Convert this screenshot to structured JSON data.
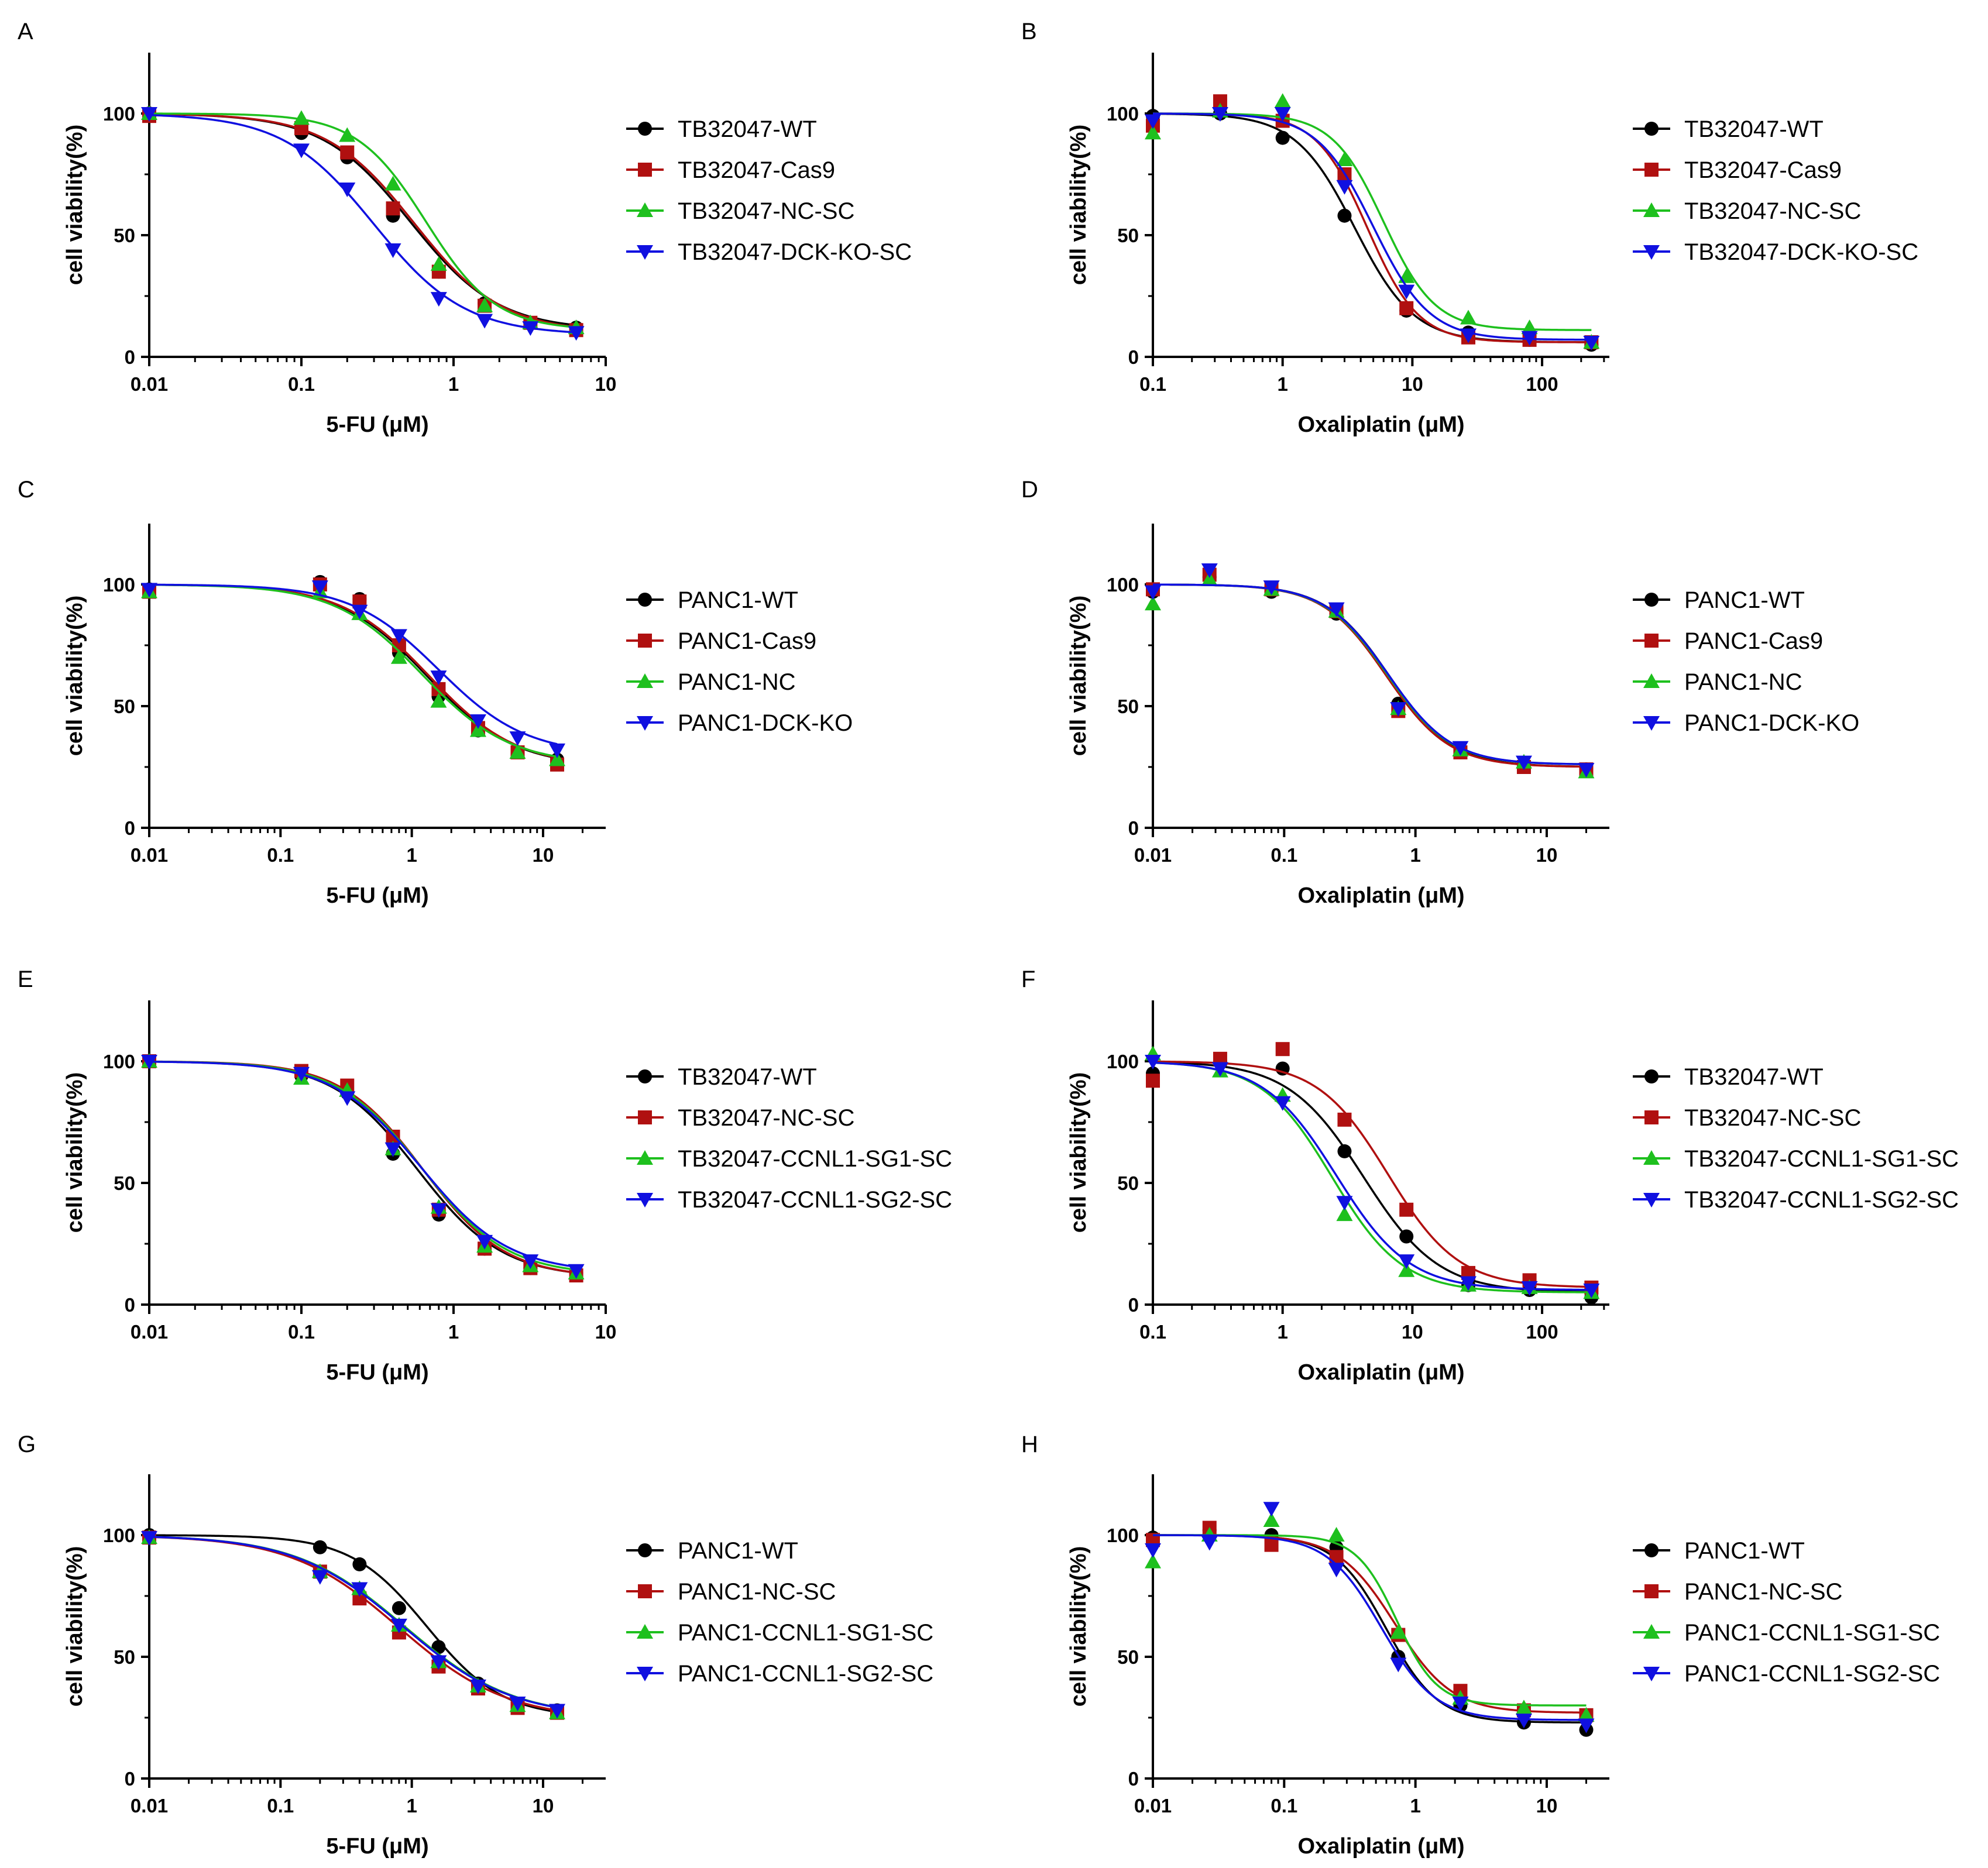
{
  "figure": {
    "panels": [
      "A",
      "B",
      "C",
      "D",
      "E",
      "F",
      "G",
      "H"
    ]
  },
  "chart_data": [
    {
      "panel": "A",
      "type": "line",
      "ylabel": "cell viability(%)",
      "xlabel": "5-FU (μM)",
      "xscale": "log",
      "xlim": [
        0.01,
        10
      ],
      "ylim": [
        0,
        125
      ],
      "xticks": [
        "0.01",
        "0.1",
        "1",
        "10"
      ],
      "yticks": [
        "0",
        "50",
        "100"
      ],
      "x": [
        0.01,
        0.1,
        0.2,
        0.4,
        0.8,
        1.6,
        3.2,
        6.4
      ],
      "series": [
        {
          "name": "TB32047-WT",
          "color": "#000000",
          "marker": "circle",
          "values": [
            100,
            92,
            82,
            58,
            35,
            22,
            14,
            12
          ],
          "fit": {
            "bottom": 11,
            "top": 100,
            "ic50": 0.52,
            "hill": 1.5
          }
        },
        {
          "name": "TB32047-Cas9",
          "color": "#b01010",
          "marker": "square",
          "values": [
            99,
            94,
            84,
            61,
            35,
            21,
            14,
            11
          ],
          "fit": {
            "bottom": 10,
            "top": 100,
            "ic50": 0.55,
            "hill": 1.5
          }
        },
        {
          "name": "TB32047-NC-SC",
          "color": "#1ec01e",
          "marker": "triangle-up",
          "values": [
            100,
            98,
            91,
            71,
            38,
            21,
            14,
            12
          ],
          "fit": {
            "bottom": 11,
            "top": 100,
            "ic50": 0.66,
            "hill": 1.9
          }
        },
        {
          "name": "TB32047-DCK-KO-SC",
          "color": "#1010e0",
          "marker": "triangle-down",
          "values": [
            100,
            85,
            69,
            44,
            24,
            15,
            12,
            10
          ],
          "fit": {
            "bottom": 9,
            "top": 100,
            "ic50": 0.3,
            "hill": 1.45
          }
        }
      ]
    },
    {
      "panel": "B",
      "type": "line",
      "ylabel": "cell viability(%)",
      "xlabel": "Oxaliplatin (μM)",
      "xscale": "log",
      "xlim": [
        0.1,
        330
      ],
      "ylim": [
        0,
        125
      ],
      "xticks": [
        "0.1",
        "1",
        "10",
        "100"
      ],
      "yticks": [
        "0",
        "50",
        "100"
      ],
      "x": [
        0.1,
        0.33,
        1,
        3,
        9,
        27,
        80,
        240
      ],
      "series": [
        {
          "name": "TB32047-WT",
          "color": "#000000",
          "marker": "circle",
          "values": [
            99,
            100,
            90,
            58,
            19,
            10,
            7,
            5
          ],
          "fit": {
            "bottom": 6,
            "top": 100,
            "ic50": 3.6,
            "hill": 1.9
          }
        },
        {
          "name": "TB32047-Cas9",
          "color": "#b01010",
          "marker": "square",
          "values": [
            95,
            105,
            97,
            75,
            20,
            8,
            7,
            6
          ],
          "fit": {
            "bottom": 6,
            "top": 100,
            "ic50": 4.5,
            "hill": 2.2
          }
        },
        {
          "name": "TB32047-NC-SC",
          "color": "#1ec01e",
          "marker": "triangle-up",
          "values": [
            92,
            101,
            105,
            81,
            33,
            16,
            12,
            6
          ],
          "fit": {
            "bottom": 11,
            "top": 100,
            "ic50": 6.0,
            "hill": 2.2
          }
        },
        {
          "name": "TB32047-DCK-KO-SC",
          "color": "#1010e0",
          "marker": "triangle-down",
          "values": [
            97,
            100,
            100,
            70,
            27,
            9,
            8,
            6
          ],
          "fit": {
            "bottom": 7,
            "top": 100,
            "ic50": 5.0,
            "hill": 2.0
          }
        }
      ]
    },
    {
      "panel": "C",
      "type": "line",
      "ylabel": "cell viability(%)",
      "xlabel": "5-FU (μM)",
      "xscale": "log",
      "xlim": [
        0.01,
        30
      ],
      "ylim": [
        0,
        125
      ],
      "xticks": [
        "0.01",
        "0.1",
        "1",
        "10"
      ],
      "yticks": [
        "0",
        "50",
        "100"
      ],
      "x": [
        0.01,
        0.2,
        0.4,
        0.8,
        1.6,
        3.2,
        6.4,
        12.8
      ],
      "series": [
        {
          "name": "PANC1-WT",
          "color": "#000000",
          "marker": "circle",
          "values": [
            98,
            101,
            94,
            72,
            54,
            40,
            31,
            28
          ],
          "fit": {
            "bottom": 25,
            "top": 100,
            "ic50": 1.3,
            "hill": 1.3
          }
        },
        {
          "name": "PANC1-Cas9",
          "color": "#b01010",
          "marker": "square",
          "values": [
            97,
            100,
            93,
            75,
            57,
            41,
            31,
            26
          ],
          "fit": {
            "bottom": 25,
            "top": 100,
            "ic50": 1.35,
            "hill": 1.3
          }
        },
        {
          "name": "PANC1-NC",
          "color": "#1ec01e",
          "marker": "triangle-up",
          "values": [
            97,
            97,
            88,
            70,
            52,
            40,
            31,
            28
          ],
          "fit": {
            "bottom": 26,
            "top": 100,
            "ic50": 1.2,
            "hill": 1.3
          }
        },
        {
          "name": "PANC1-DCK-KO",
          "color": "#1010e0",
          "marker": "triangle-down",
          "values": [
            98,
            99,
            89,
            79,
            62,
            44,
            37,
            32
          ],
          "fit": {
            "bottom": 30,
            "top": 100,
            "ic50": 1.6,
            "hill": 1.3
          }
        }
      ]
    },
    {
      "panel": "D",
      "type": "line",
      "ylabel": "cell viability(%)",
      "xlabel": "Oxaliplatin (μM)",
      "xscale": "log",
      "xlim": [
        0.01,
        30
      ],
      "ylim": [
        0,
        125
      ],
      "xticks": [
        "0.01",
        "0.1",
        "1",
        "10"
      ],
      "yticks": [
        "0",
        "50",
        "100"
      ],
      "x": [
        0.01,
        0.027,
        0.08,
        0.25,
        0.74,
        2.2,
        6.7,
        20
      ],
      "series": [
        {
          "name": "PANC1-WT",
          "color": "#000000",
          "marker": "circle",
          "values": [
            97,
            103,
            97,
            88,
            51,
            32,
            26,
            24
          ],
          "fit": {
            "bottom": 25,
            "top": 100,
            "ic50": 0.63,
            "hill": 1.8
          }
        },
        {
          "name": "PANC1-Cas9",
          "color": "#b01010",
          "marker": "square",
          "values": [
            98,
            104,
            98,
            89,
            48,
            31,
            25,
            24
          ],
          "fit": {
            "bottom": 25,
            "top": 100,
            "ic50": 0.6,
            "hill": 1.8
          }
        },
        {
          "name": "PANC1-NC",
          "color": "#1ec01e",
          "marker": "triangle-up",
          "values": [
            92,
            102,
            98,
            89,
            49,
            32,
            27,
            23
          ],
          "fit": {
            "bottom": 26,
            "top": 100,
            "ic50": 0.61,
            "hill": 1.8
          }
        },
        {
          "name": "PANC1-DCK-KO",
          "color": "#1010e0",
          "marker": "triangle-down",
          "values": [
            97,
            106,
            99,
            90,
            49,
            33,
            27,
            24
          ],
          "fit": {
            "bottom": 26,
            "top": 100,
            "ic50": 0.62,
            "hill": 1.8
          }
        }
      ]
    },
    {
      "panel": "E",
      "type": "line",
      "ylabel": "cell viability(%)",
      "xlabel": "5-FU (μM)",
      "xscale": "log",
      "xlim": [
        0.01,
        10
      ],
      "ylim": [
        0,
        125
      ],
      "xticks": [
        "0.01",
        "0.1",
        "1",
        "10"
      ],
      "yticks": [
        "0",
        "50",
        "100"
      ],
      "x": [
        0.01,
        0.1,
        0.2,
        0.4,
        0.8,
        1.6,
        3.2,
        6.4
      ],
      "series": [
        {
          "name": "TB32047-WT",
          "color": "#000000",
          "marker": "circle",
          "values": [
            100,
            94,
            87,
            62,
            37,
            23,
            15,
            13
          ],
          "fit": {
            "bottom": 11,
            "top": 100,
            "ic50": 0.58,
            "hill": 1.55
          }
        },
        {
          "name": "TB32047-NC-SC",
          "color": "#b01010",
          "marker": "square",
          "values": [
            100,
            96,
            90,
            69,
            39,
            23,
            15,
            12
          ],
          "fit": {
            "bottom": 11,
            "top": 100,
            "ic50": 0.63,
            "hill": 1.6
          }
        },
        {
          "name": "TB32047-CCNL1-SG1-SC",
          "color": "#1ec01e",
          "marker": "triangle-up",
          "values": [
            100,
            93,
            88,
            64,
            40,
            24,
            16,
            13
          ],
          "fit": {
            "bottom": 12,
            "top": 100,
            "ic50": 0.62,
            "hill": 1.55
          }
        },
        {
          "name": "TB32047-CCNL1-SG2-SC",
          "color": "#1010e0",
          "marker": "triangle-down",
          "values": [
            100,
            95,
            85,
            64,
            39,
            26,
            18,
            14
          ],
          "fit": {
            "bottom": 13,
            "top": 100,
            "ic50": 0.61,
            "hill": 1.5
          }
        }
      ]
    },
    {
      "panel": "F",
      "type": "line",
      "ylabel": "cell viability(%)",
      "xlabel": "Oxaliplatin (μM)",
      "xscale": "log",
      "xlim": [
        0.1,
        330
      ],
      "ylim": [
        0,
        125
      ],
      "xticks": [
        "0.1",
        "1",
        "10",
        "100"
      ],
      "yticks": [
        "0",
        "50",
        "100"
      ],
      "x": [
        0.1,
        0.33,
        1,
        3,
        9,
        27,
        80,
        240
      ],
      "series": [
        {
          "name": "TB32047-WT",
          "color": "#000000",
          "marker": "circle",
          "values": [
            95,
            100,
            97,
            63,
            28,
            8,
            6,
            3
          ],
          "fit": {
            "bottom": 5,
            "top": 100,
            "ic50": 4.2,
            "hill": 1.5
          }
        },
        {
          "name": "TB32047-NC-SC",
          "color": "#b01010",
          "marker": "square",
          "values": [
            92,
            101,
            105,
            76,
            39,
            13,
            10,
            7
          ],
          "fit": {
            "bottom": 7,
            "top": 100,
            "ic50": 6.5,
            "hill": 1.6
          }
        },
        {
          "name": "TB32047-CCNL1-SG1-SC",
          "color": "#1ec01e",
          "marker": "triangle-up",
          "values": [
            103,
            96,
            86,
            37,
            14,
            8,
            7,
            5
          ],
          "fit": {
            "bottom": 5,
            "top": 100,
            "ic50": 2.4,
            "hill": 1.6
          }
        },
        {
          "name": "TB32047-CCNL1-SG2-SC",
          "color": "#1010e0",
          "marker": "triangle-down",
          "values": [
            100,
            97,
            83,
            42,
            18,
            9,
            7,
            6
          ],
          "fit": {
            "bottom": 6,
            "top": 100,
            "ic50": 2.6,
            "hill": 1.55
          }
        }
      ]
    },
    {
      "panel": "G",
      "type": "line",
      "ylabel": "cell viability(%)",
      "xlabel": "5-FU (μM)",
      "xscale": "log",
      "xlim": [
        0.01,
        30
      ],
      "ylim": [
        0,
        125
      ],
      "xticks": [
        "0.01",
        "0.1",
        "1",
        "10"
      ],
      "yticks": [
        "0",
        "50",
        "100"
      ],
      "x": [
        0.01,
        0.2,
        0.4,
        0.8,
        1.6,
        3.2,
        6.4,
        12.8
      ],
      "series": [
        {
          "name": "PANC1-WT",
          "color": "#000000",
          "marker": "circle",
          "values": [
            100,
            95,
            88,
            70,
            54,
            39,
            30,
            28
          ],
          "fit": {
            "bottom": 25,
            "top": 100,
            "ic50": 1.3,
            "hill": 1.5
          }
        },
        {
          "name": "PANC1-NC-SC",
          "color": "#b01010",
          "marker": "square",
          "values": [
            99,
            85,
            74,
            60,
            46,
            37,
            29,
            27
          ],
          "fit": {
            "bottom": 24,
            "top": 100,
            "ic50": 0.8,
            "hill": 1.05
          }
        },
        {
          "name": "PANC1-CCNL1-SG1-SC",
          "color": "#1ec01e",
          "marker": "triangle-up",
          "values": [
            99,
            85,
            78,
            63,
            48,
            38,
            30,
            27
          ],
          "fit": {
            "bottom": 25,
            "top": 100,
            "ic50": 0.88,
            "hill": 1.05
          }
        },
        {
          "name": "PANC1-CCNL1-SG2-SC",
          "color": "#1010e0",
          "marker": "triangle-down",
          "values": [
            99,
            83,
            78,
            63,
            48,
            38,
            31,
            28
          ],
          "fit": {
            "bottom": 25,
            "top": 100,
            "ic50": 0.86,
            "hill": 1.05
          }
        }
      ]
    },
    {
      "panel": "H",
      "type": "line",
      "ylabel": "cell viability(%)",
      "xlabel": "Oxaliplatin (μM)",
      "xscale": "log",
      "xlim": [
        0.01,
        30
      ],
      "ylim": [
        0,
        125
      ],
      "xticks": [
        "0.01",
        "0.1",
        "1",
        "10"
      ],
      "yticks": [
        "0",
        "50",
        "100"
      ],
      "x": [
        0.01,
        0.027,
        0.08,
        0.25,
        0.74,
        2.2,
        6.7,
        20
      ],
      "series": [
        {
          "name": "PANC1-WT",
          "color": "#000000",
          "marker": "circle",
          "values": [
            99,
            102,
            100,
            95,
            50,
            30,
            23,
            20
          ],
          "fit": {
            "bottom": 23,
            "top": 100,
            "ic50": 0.6,
            "hill": 2.2
          }
        },
        {
          "name": "PANC1-NC-SC",
          "color": "#b01010",
          "marker": "square",
          "values": [
            98,
            103,
            96,
            91,
            59,
            36,
            28,
            26
          ],
          "fit": {
            "bottom": 27,
            "top": 100,
            "ic50": 0.7,
            "hill": 2.0
          }
        },
        {
          "name": "PANC1-CCNL1-SG1-SC",
          "color": "#1ec01e",
          "marker": "triangle-up",
          "values": [
            89,
            100,
            106,
            100,
            60,
            33,
            29,
            26
          ],
          "fit": {
            "bottom": 30,
            "top": 100,
            "ic50": 0.72,
            "hill": 2.8
          }
        },
        {
          "name": "PANC1-CCNL1-SG2-SC",
          "color": "#1010e0",
          "marker": "triangle-down",
          "values": [
            94,
            97,
            111,
            86,
            47,
            31,
            24,
            22
          ],
          "fit": {
            "bottom": 24,
            "top": 100,
            "ic50": 0.55,
            "hill": 2.1
          }
        }
      ]
    }
  ]
}
